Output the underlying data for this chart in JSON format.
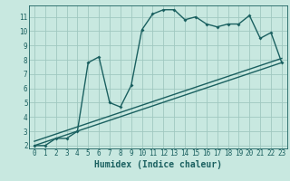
{
  "title": "",
  "xlabel": "Humidex (Indice chaleur)",
  "bg_color": "#c8e8e0",
  "grid_color": "#a0c8c0",
  "line_color": "#1a6060",
  "xlim": [
    -0.5,
    23.5
  ],
  "ylim": [
    1.8,
    11.8
  ],
  "xticks": [
    0,
    1,
    2,
    3,
    4,
    5,
    6,
    7,
    8,
    9,
    10,
    11,
    12,
    13,
    14,
    15,
    16,
    17,
    18,
    19,
    20,
    21,
    22,
    23
  ],
  "yticks": [
    2,
    3,
    4,
    5,
    6,
    7,
    8,
    9,
    10,
    11
  ],
  "curve1_x": [
    0,
    1,
    2,
    3,
    4,
    5,
    6,
    7,
    8,
    9,
    10,
    11,
    12,
    13,
    14,
    15,
    16,
    17,
    18,
    19,
    20,
    21,
    22,
    23
  ],
  "curve1_y": [
    2.0,
    2.0,
    2.5,
    2.5,
    3.0,
    7.8,
    8.2,
    5.0,
    4.7,
    6.2,
    10.1,
    11.2,
    11.5,
    11.5,
    10.8,
    11.0,
    10.5,
    10.3,
    10.5,
    10.5,
    11.1,
    9.5,
    9.9,
    7.8
  ],
  "curve2_x": [
    0,
    23
  ],
  "curve2_y": [
    2.0,
    7.8
  ],
  "curve3_x": [
    0,
    23
  ],
  "curve3_y": [
    2.3,
    8.1
  ],
  "xlabel_fontsize": 7,
  "tick_fontsize": 5.5,
  "linewidth": 1.0,
  "markersize": 2.0
}
